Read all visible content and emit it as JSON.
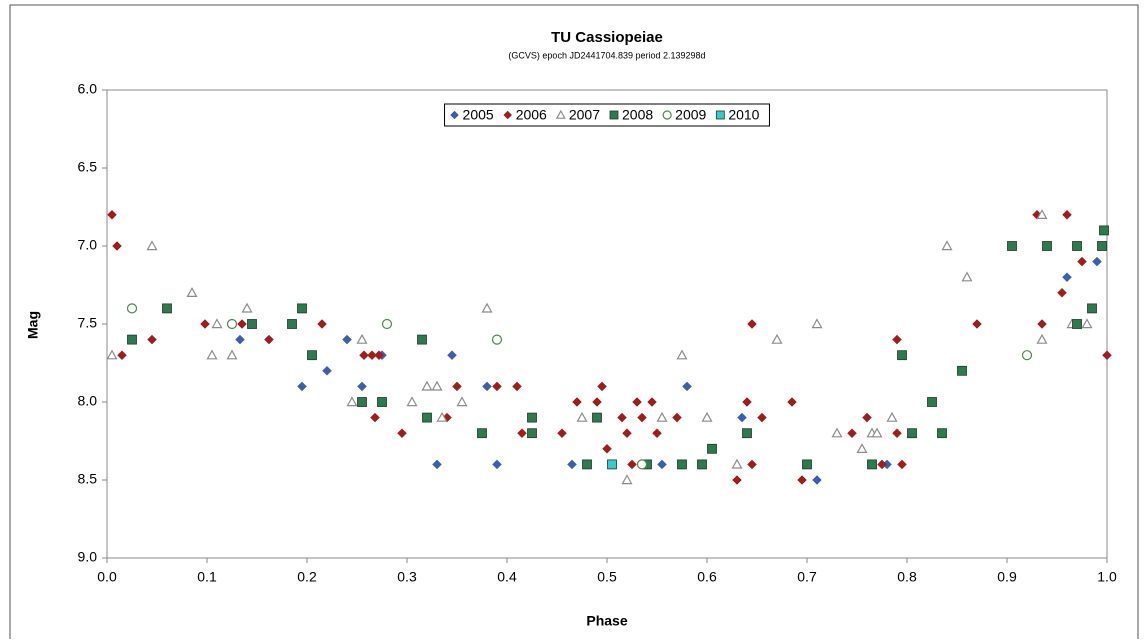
{
  "chart_data": {
    "type": "scatter",
    "title": "TU Cassiopeiae",
    "subtitle": "(GCVS) epoch JD2441704.839  period 2.139298d",
    "x_label": "Phase",
    "y_label": "Mag",
    "xlim": [
      0,
      1
    ],
    "ylim": [
      6,
      9
    ],
    "y_inverted": true,
    "grid": false,
    "legend_position": "top",
    "xticks": [
      {
        "value": 0,
        "label": "0.0"
      },
      0.1,
      0.2,
      0.3,
      0.4,
      0.5,
      0.6,
      0.7,
      0.8,
      0.9,
      {
        "value": 1,
        "label": "1.0"
      }
    ],
    "yticks": [
      {
        "value": 6,
        "label": "6.0"
      },
      6.5,
      {
        "value": 7,
        "label": "7.0"
      },
      7.5,
      {
        "value": 8,
        "label": "8.0"
      },
      8.5,
      {
        "value": 9,
        "label": "9.0"
      }
    ],
    "series": [
      {
        "name": "2005",
        "color": "#3b5fb0",
        "marker": "diamond",
        "x": [
          0.133,
          0.195,
          0.22,
          0.24,
          0.255,
          0.275,
          0.33,
          0.345,
          0.38,
          0.39,
          0.465,
          0.555,
          0.58,
          0.635,
          0.71,
          0.78,
          0.96,
          0.99
        ],
        "values": [
          7.6,
          7.9,
          7.8,
          7.6,
          7.9,
          7.7,
          8.4,
          7.7,
          7.9,
          8.4,
          8.4,
          8.4,
          7.9,
          8.1,
          8.5,
          8.4,
          7.2,
          7.1
        ]
      },
      {
        "name": "2006",
        "color": "#a31c1c",
        "marker": "diamond",
        "x": [
          0.005,
          0.01,
          0.015,
          0.045,
          0.098,
          0.135,
          0.162,
          0.215,
          0.257,
          0.265,
          0.268,
          0.272,
          0.295,
          0.34,
          0.35,
          0.39,
          0.41,
          0.415,
          0.455,
          0.47,
          0.49,
          0.495,
          0.5,
          0.515,
          0.52,
          0.525,
          0.53,
          0.545,
          0.55,
          0.57,
          0.535,
          0.63,
          0.64,
          0.645,
          0.645,
          0.655,
          0.685,
          0.695,
          0.745,
          0.76,
          0.775,
          0.79,
          0.79,
          0.795,
          0.87,
          0.935,
          0.93,
          0.955,
          0.96,
          0.975,
          1.0
        ],
        "values": [
          6.8,
          7.0,
          7.7,
          7.6,
          7.5,
          7.5,
          7.6,
          7.5,
          7.7,
          7.7,
          8.1,
          7.7,
          8.2,
          8.1,
          7.9,
          7.9,
          7.9,
          8.2,
          8.2,
          8.0,
          8.0,
          7.9,
          8.3,
          8.1,
          8.2,
          8.4,
          8.0,
          8.0,
          8.2,
          8.1,
          8.1,
          8.5,
          8.0,
          8.4,
          7.5,
          8.1,
          8.0,
          8.5,
          8.2,
          8.1,
          8.4,
          8.2,
          7.6,
          8.4,
          7.5,
          7.5,
          6.8,
          7.3,
          6.8,
          7.1,
          7.7
        ]
      },
      {
        "name": "2007",
        "color": "#8c8c8c",
        "marker": "triangle-open",
        "x": [
          0.005,
          0.045,
          0.085,
          0.105,
          0.11,
          0.125,
          0.14,
          0.245,
          0.255,
          0.305,
          0.32,
          0.33,
          0.335,
          0.355,
          0.38,
          0.475,
          0.52,
          0.555,
          0.575,
          0.6,
          0.63,
          0.67,
          0.71,
          0.73,
          0.755,
          0.765,
          0.77,
          0.785,
          0.84,
          0.86,
          0.935,
          0.935,
          0.965,
          0.98
        ],
        "values": [
          7.7,
          7.0,
          7.3,
          7.7,
          7.5,
          7.7,
          7.4,
          8.0,
          7.6,
          8.0,
          7.9,
          7.9,
          8.1,
          8.0,
          7.4,
          8.1,
          8.5,
          8.1,
          7.7,
          8.1,
          8.4,
          7.6,
          7.5,
          8.2,
          8.3,
          8.2,
          8.2,
          8.1,
          7.0,
          7.2,
          7.6,
          6.8,
          7.5,
          7.5
        ]
      },
      {
        "name": "2008",
        "color": "#2e7a4e",
        "marker": "square",
        "x": [
          0.025,
          0.06,
          0.145,
          0.185,
          0.195,
          0.205,
          0.255,
          0.275,
          0.315,
          0.32,
          0.375,
          0.425,
          0.425,
          0.48,
          0.49,
          0.54,
          0.575,
          0.595,
          0.605,
          0.64,
          0.7,
          0.765,
          0.795,
          0.805,
          0.825,
          0.835,
          0.855,
          0.905,
          0.94,
          0.97,
          0.97,
          0.985,
          0.995,
          0.997
        ],
        "values": [
          7.6,
          7.4,
          7.5,
          7.5,
          7.4,
          7.7,
          8.0,
          8.0,
          7.6,
          8.1,
          8.2,
          8.1,
          8.2,
          8.4,
          8.1,
          8.4,
          8.4,
          8.4,
          8.3,
          8.2,
          8.4,
          8.4,
          7.7,
          8.2,
          8.0,
          8.2,
          7.8,
          7.0,
          7.0,
          7.5,
          7.0,
          7.4,
          7.0,
          6.9
        ]
      },
      {
        "name": "2009",
        "color": "#4a8a4a",
        "marker": "circle-open",
        "x": [
          0.025,
          0.125,
          0.28,
          0.39,
          0.535,
          0.92
        ],
        "values": [
          7.4,
          7.5,
          7.5,
          7.6,
          8.4,
          7.7
        ]
      },
      {
        "name": "2010",
        "color": "#33cccc",
        "marker": "square",
        "x": [
          0.505
        ],
        "values": [
          8.4
        ]
      }
    ]
  }
}
